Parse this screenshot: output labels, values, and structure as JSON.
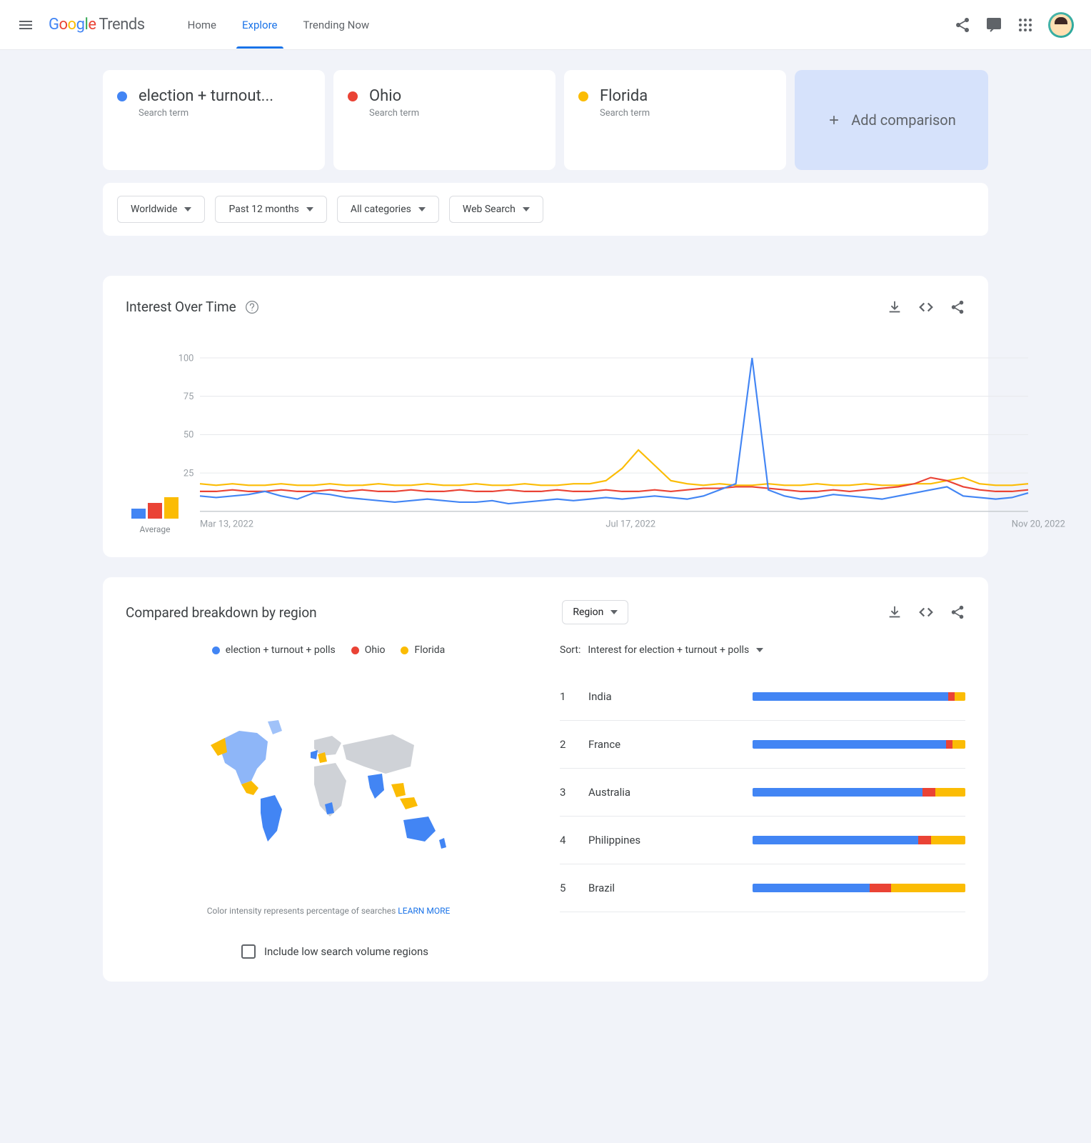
{
  "colors": {
    "blue": "#4285f4",
    "red": "#ea4335",
    "yellow": "#fbbc04",
    "grid": "#e8eaed",
    "axis_text": "#9aa0a6",
    "map_inactive": "#cfd2d7"
  },
  "logo": {
    "brand": "Google",
    "product": "Trends"
  },
  "nav": {
    "home": "Home",
    "explore": "Explore",
    "trending": "Trending Now",
    "active": "explore"
  },
  "terms": [
    {
      "label": "election + turnout...",
      "sub": "Search term",
      "color": "#4285f4"
    },
    {
      "label": "Ohio",
      "sub": "Search term",
      "color": "#ea4335"
    },
    {
      "label": "Florida",
      "sub": "Search term",
      "color": "#fbbc04"
    }
  ],
  "add_comparison": "Add comparison",
  "filters": {
    "geo": "Worldwide",
    "time": "Past 12 months",
    "category": "All categories",
    "search_type": "Web Search"
  },
  "interest_over_time": {
    "title": "Interest Over Time",
    "average_label": "Average",
    "avg_bars": [
      {
        "color": "#4285f4",
        "height": 14
      },
      {
        "color": "#ea4335",
        "height": 22
      },
      {
        "color": "#fbbc04",
        "height": 30
      }
    ],
    "yticks": [
      "100",
      "75",
      "50",
      "25"
    ],
    "xticks": [
      "Mar 13, 2022",
      "Jul 17, 2022",
      "Nov 20, 2022"
    ],
    "ylim": [
      0,
      100
    ],
    "series": {
      "blue": [
        10,
        9,
        10,
        11,
        13,
        10,
        8,
        12,
        11,
        9,
        8,
        7,
        6,
        7,
        8,
        7,
        6,
        6,
        7,
        5,
        6,
        7,
        8,
        7,
        8,
        9,
        8,
        9,
        10,
        9,
        8,
        10,
        14,
        18,
        100,
        14,
        10,
        8,
        9,
        11,
        10,
        9,
        8,
        10,
        12,
        14,
        16,
        10,
        9,
        8,
        9,
        12
      ],
      "red": [
        13,
        13,
        14,
        13,
        13,
        14,
        13,
        13,
        14,
        13,
        14,
        13,
        13,
        14,
        13,
        13,
        14,
        13,
        13,
        14,
        13,
        13,
        14,
        13,
        13,
        14,
        13,
        13,
        14,
        13,
        14,
        15,
        15,
        16,
        16,
        15,
        14,
        13,
        13,
        14,
        13,
        14,
        15,
        16,
        18,
        22,
        20,
        16,
        14,
        13,
        13,
        14
      ],
      "yellow": [
        18,
        17,
        18,
        17,
        17,
        18,
        17,
        17,
        18,
        17,
        17,
        18,
        17,
        17,
        18,
        17,
        17,
        18,
        17,
        17,
        18,
        17,
        17,
        18,
        18,
        20,
        28,
        40,
        30,
        20,
        18,
        17,
        18,
        17,
        17,
        18,
        17,
        17,
        18,
        17,
        17,
        18,
        17,
        17,
        18,
        18,
        20,
        22,
        18,
        17,
        17,
        18
      ]
    }
  },
  "region_breakdown": {
    "title": "Compared breakdown by region",
    "dropdown": "Region",
    "legend": [
      {
        "label": "election + turnout + polls",
        "color": "#4285f4"
      },
      {
        "label": "Ohio",
        "color": "#ea4335"
      },
      {
        "label": "Florida",
        "color": "#fbbc04"
      }
    ],
    "sort_label": "Sort:",
    "sort_value": "Interest for election + turnout + polls",
    "map_note": "Color intensity represents percentage of searches",
    "learn_more": "LEARN MORE",
    "rows": [
      {
        "rank": "1",
        "name": "India",
        "segments": [
          92,
          3,
          5
        ]
      },
      {
        "rank": "2",
        "name": "France",
        "segments": [
          91,
          3,
          6
        ]
      },
      {
        "rank": "3",
        "name": "Australia",
        "segments": [
          80,
          6,
          14
        ]
      },
      {
        "rank": "4",
        "name": "Philippines",
        "segments": [
          78,
          6,
          16
        ]
      },
      {
        "rank": "5",
        "name": "Brazil",
        "segments": [
          55,
          10,
          35
        ]
      }
    ],
    "checkbox_label": "Include low search volume regions"
  }
}
